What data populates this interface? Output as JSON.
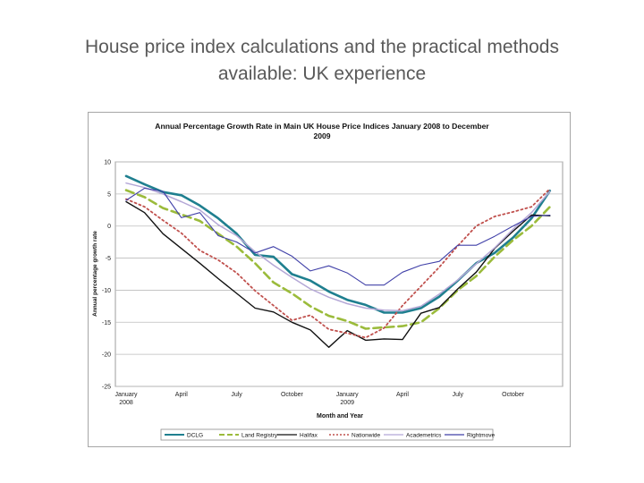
{
  "slide": {
    "title_line1": "House price index calculations and the practical methods",
    "title_line2": "available: UK experience"
  },
  "chart_data": {
    "type": "line",
    "title_line1": "Annual Percentage Growth Rate in Main UK House Price Indices January 2008 to December",
    "title_line2": "2009",
    "xlabel": "Month and Year",
    "ylabel": "Annual percentage growth rate",
    "ylim": [
      -25,
      10
    ],
    "yticks": [
      10,
      5,
      0,
      -5,
      -10,
      -15,
      -20,
      -25
    ],
    "x_months": 24,
    "xtick_labels": [
      {
        "month": 0,
        "lines": [
          "January",
          "2008"
        ]
      },
      {
        "month": 3,
        "lines": [
          "April"
        ]
      },
      {
        "month": 6,
        "lines": [
          "July"
        ]
      },
      {
        "month": 9,
        "lines": [
          "October"
        ]
      },
      {
        "month": 12,
        "lines": [
          "January",
          "2009"
        ]
      },
      {
        "month": 15,
        "lines": [
          "April"
        ]
      },
      {
        "month": 18,
        "lines": [
          "July"
        ]
      },
      {
        "month": 21,
        "lines": [
          "October"
        ]
      }
    ],
    "grid": "horizontal",
    "legend_position": "bottom",
    "series": [
      {
        "name": "DCLG",
        "color": "#1f7f8f",
        "dash": "solid",
        "width": 2.6,
        "values": [
          7.8,
          6.5,
          5.3,
          4.8,
          3.2,
          1.2,
          -1.2,
          -4.5,
          -4.8,
          -7.5,
          -8.5,
          -10.2,
          -11.5,
          -12.3,
          -13.5,
          -13.5,
          -12.8,
          -11.0,
          -8.5,
          -5.8,
          -4.2,
          -1.8,
          1.2,
          5.5
        ]
      },
      {
        "name": "Land Registry",
        "color": "#9bbb3b",
        "dash": "long",
        "width": 2.6,
        "values": [
          5.6,
          4.5,
          2.8,
          1.8,
          0.8,
          -1.2,
          -3.2,
          -5.8,
          -8.8,
          -10.5,
          -12.5,
          -14.0,
          -14.8,
          -16.0,
          -15.8,
          -15.6,
          -15.0,
          -12.8,
          -10.0,
          -7.8,
          -4.8,
          -2.2,
          0.0,
          3.0
        ]
      },
      {
        "name": "Halifax",
        "color": "#111111",
        "dash": "solid",
        "width": 1.4,
        "values": [
          3.8,
          2.1,
          -1.2,
          -3.5,
          -5.8,
          -8.2,
          -10.5,
          -12.8,
          -13.4,
          -15.0,
          -16.2,
          -18.9,
          -16.3,
          -17.8,
          -17.6,
          -17.7,
          -13.6,
          -12.7,
          -9.8,
          -7.2,
          -3.5,
          -0.8,
          1.7,
          1.6
        ]
      },
      {
        "name": "Nationwide",
        "color": "#c0504d",
        "dash": "dot",
        "width": 1.8,
        "values": [
          4.2,
          3.0,
          0.9,
          -1.1,
          -3.8,
          -5.3,
          -7.3,
          -10.1,
          -12.4,
          -14.7,
          -13.9,
          -16.1,
          -16.7,
          -17.4,
          -15.9,
          -12.4,
          -9.4,
          -6.4,
          -3.1,
          0.0,
          1.5,
          2.2,
          3.0,
          5.8
        ]
      },
      {
        "name": "Academetrics",
        "color": "#b4a7d6",
        "dash": "solid",
        "width": 1.5,
        "values": [
          6.7,
          6.0,
          5.0,
          3.8,
          2.5,
          0.2,
          -1.5,
          -4.0,
          -6.1,
          -8.0,
          -9.8,
          -11.1,
          -12.1,
          -12.8,
          -13.1,
          -13.2,
          -12.5,
          -10.6,
          -8.4,
          -5.9,
          -3.4,
          -0.5,
          2.1,
          5.4
        ]
      },
      {
        "name": "Rightmove",
        "color": "#4040a8",
        "dash": "solid",
        "width": 1.1,
        "values": [
          4.0,
          5.9,
          5.4,
          1.3,
          2.1,
          -1.5,
          -2.5,
          -4.2,
          -3.2,
          -4.7,
          -7.0,
          -6.2,
          -7.3,
          -9.2,
          -9.2,
          -7.2,
          -6.1,
          -5.5,
          -3.0,
          -3.0,
          -1.6,
          0.0,
          1.5,
          1.7
        ]
      }
    ]
  }
}
